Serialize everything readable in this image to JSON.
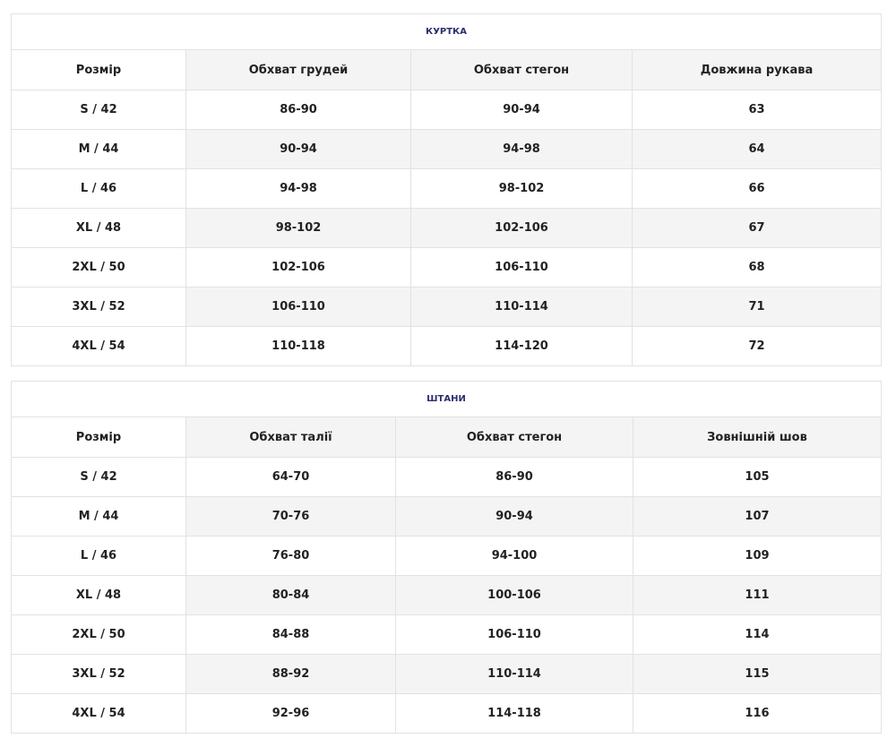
{
  "colors": {
    "title": "#2b2f6e",
    "shade": "#f4f4f4",
    "border": "#e2e2e2"
  },
  "jacket": {
    "title": "КУРТКА",
    "headers": [
      "Розмір",
      "Обхват грудей",
      "Обхват стегон",
      "Довжина рукава"
    ],
    "rows": [
      [
        "S / 42",
        "86-90",
        "90-94",
        "63"
      ],
      [
        "M / 44",
        "90-94",
        "94-98",
        "64"
      ],
      [
        "L / 46",
        "94-98",
        "98-102",
        "66"
      ],
      [
        "XL / 48",
        "98-102",
        "102-106",
        "67"
      ],
      [
        "2XL / 50",
        "102-106",
        "106-110",
        "68"
      ],
      [
        "3XL / 52",
        "106-110",
        "110-114",
        "71"
      ],
      [
        "4XL / 54",
        "110-118",
        "114-120",
        "72"
      ]
    ]
  },
  "pants": {
    "title": "ШТАНИ",
    "headers": [
      "Розмір",
      "Обхват талії",
      "Обхват стегон",
      "Зовнішній шов"
    ],
    "rows": [
      [
        "S / 42",
        "64-70",
        "86-90",
        "105"
      ],
      [
        "M / 44",
        "70-76",
        "90-94",
        "107"
      ],
      [
        "L / 46",
        "76-80",
        "94-100",
        "109"
      ],
      [
        "XL / 48",
        "80-84",
        "100-106",
        "111"
      ],
      [
        "2XL / 50",
        "84-88",
        "106-110",
        "114"
      ],
      [
        "3XL / 52",
        "88-92",
        "110-114",
        "115"
      ],
      [
        "4XL / 54",
        "92-96",
        "114-118",
        "116"
      ]
    ]
  }
}
